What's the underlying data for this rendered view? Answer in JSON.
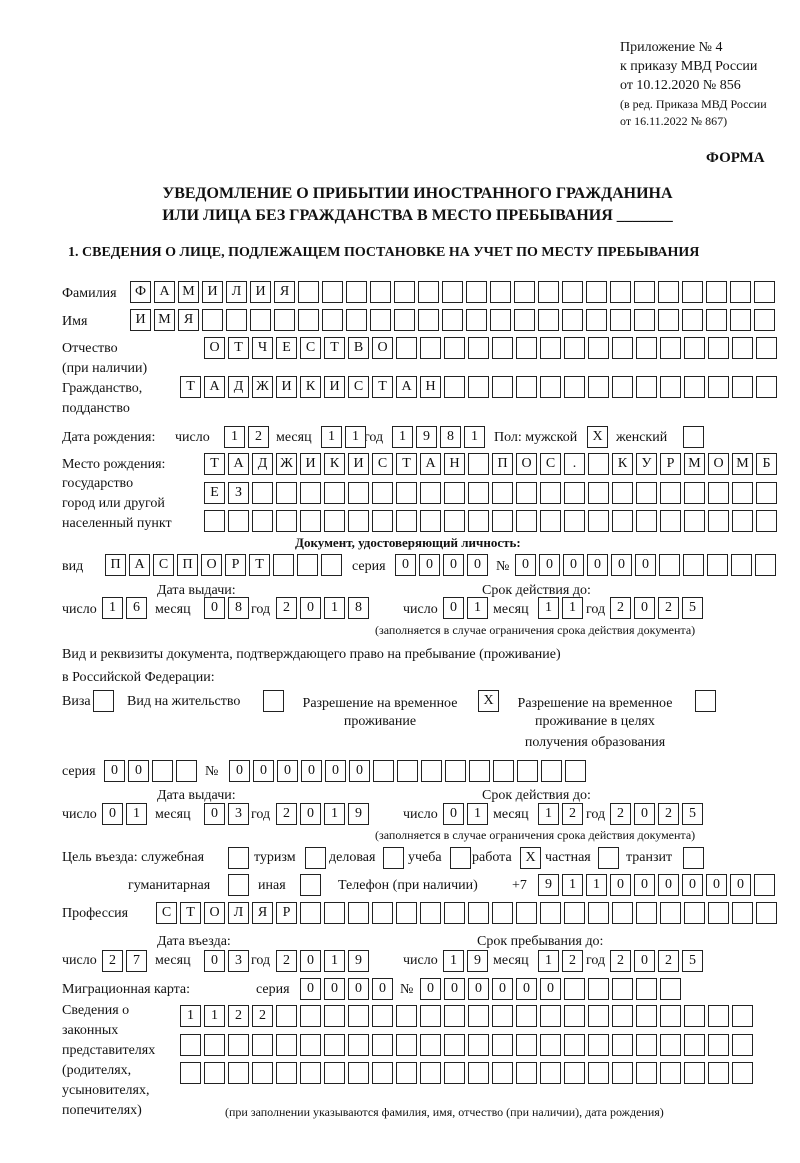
{
  "header": {
    "appendix": "Приложение № 4",
    "order": "к приказу МВД России",
    "date": "от 10.12.2020 № 856",
    "edition1": "(в ред. Приказа МВД России",
    "edition2": "от 16.11.2022 № 867)",
    "form": "ФОРМА",
    "title1": "УВЕДОМЛЕНИЕ О ПРИБЫТИИ ИНОСТРАННОГО ГРАЖДАНИНА",
    "title2": "ИЛИ ЛИЦА БЕЗ ГРАЖДАНСТВА В МЕСТО ПРЕБЫВАНИЯ _______",
    "section1": "1. СВЕДЕНИЯ О ЛИЦЕ, ПОДЛЕЖАЩЕМ ПОСТАНОВКЕ НА УЧЕТ ПО МЕСТУ ПРЕБЫВАНИЯ"
  },
  "labels": {
    "surname": "Фамилия",
    "name": "Имя",
    "patronymic": "Отчество",
    "patronymic_note": "(при наличии)",
    "citizenship": "Гражданство,",
    "citizenship2": "подданство",
    "birth_date": "Дата рождения:",
    "day": "число",
    "month": "месяц",
    "year": "год",
    "sex": "Пол: мужской",
    "female": "женский",
    "birth_place": "Место рождения:",
    "birth_place2": "государство",
    "birth_place3": "город или другой",
    "birth_place4": "населенный пункт",
    "id_doc": "Документ, удостоверяющий личность:",
    "kind": "вид",
    "series": "серия",
    "number": "№",
    "issue_date": "Дата выдачи:",
    "valid_until": "Срок действия до:",
    "validity_note": "(заполняется в случае ограничения срока действия документа)",
    "stay_doc1": "Вид и реквизиты документа, подтверждающего право на пребывание (проживание)",
    "stay_doc2": "в Российской Федерации:",
    "visa": "Виза",
    "residence": "Вид на жительство",
    "temp_permit1": "Разрешение на временное",
    "temp_permit2": "проживание",
    "edu_permit1": "Разрешение на временное",
    "edu_permit2": "проживание в целях",
    "edu_permit3": "получения образования",
    "purpose": "Цель въезда: служебная",
    "tourism": "туризм",
    "business": "деловая",
    "study": "учеба",
    "work": "работа",
    "private": "частная",
    "transit": "транзит",
    "humanitarian": "гуманитарная",
    "other": "иная",
    "phone": "Телефон (при наличии)",
    "phone_prefix": "+7",
    "profession": "Профессия",
    "entry_date": "Дата въезда:",
    "stay_until": "Срок пребывания до:",
    "migration_card": "Миграционная карта:",
    "reps1": "Сведения о",
    "reps2": "законных",
    "reps3": "представителях",
    "reps4": "(родителях,",
    "reps5": "усыновителях,",
    "reps6": "попечителях)",
    "reps_note": "(при заполнении указываются фамилия, имя, отчество (при наличии), дата рождения)"
  },
  "values": {
    "surname": "ФАМИЛИЯ",
    "name": "ИМЯ",
    "patronymic": "ОТЧЕСТВО",
    "citizenship": "ТАДЖИКИСТАН",
    "birth_day": "12",
    "birth_month": "11",
    "birth_year": "1981",
    "sex_male": "X",
    "sex_female": "",
    "birth_place_1": "ТАДЖИКИСТАН ПОС. КУРМОМБ",
    "birth_place_2": "ЕЗ",
    "birth_place_3": "",
    "doc_kind": "ПАСПОРТ",
    "doc_series": "0000",
    "doc_number": "000000",
    "doc_issue_day": "16",
    "doc_issue_month": "08",
    "doc_issue_year": "2018",
    "doc_valid_day": "01",
    "doc_valid_month": "11",
    "doc_valid_year": "2025",
    "visa": "",
    "residence": "",
    "temp_permit": "X",
    "edu_permit": "",
    "permit_series": "00",
    "permit_number": "000000",
    "permit_issue_day": "01",
    "permit_issue_month": "03",
    "permit_issue_year": "2019",
    "permit_valid_day": "01",
    "permit_valid_month": "12",
    "permit_valid_year": "2025",
    "purpose_official": "",
    "purpose_tourism": "",
    "purpose_business": "",
    "purpose_study": "",
    "purpose_work": "X",
    "purpose_private": "",
    "purpose_transit": "",
    "purpose_humanitarian": "",
    "purpose_other": "",
    "phone": "911000000",
    "profession": "СТОЛЯР",
    "entry_day": "27",
    "entry_month": "03",
    "entry_year": "2019",
    "stay_day": "19",
    "stay_month": "12",
    "stay_year": "2025",
    "mc_series": "0000",
    "mc_number": "000000",
    "reps_1": "1122",
    "reps_2": "",
    "reps_3": ""
  }
}
